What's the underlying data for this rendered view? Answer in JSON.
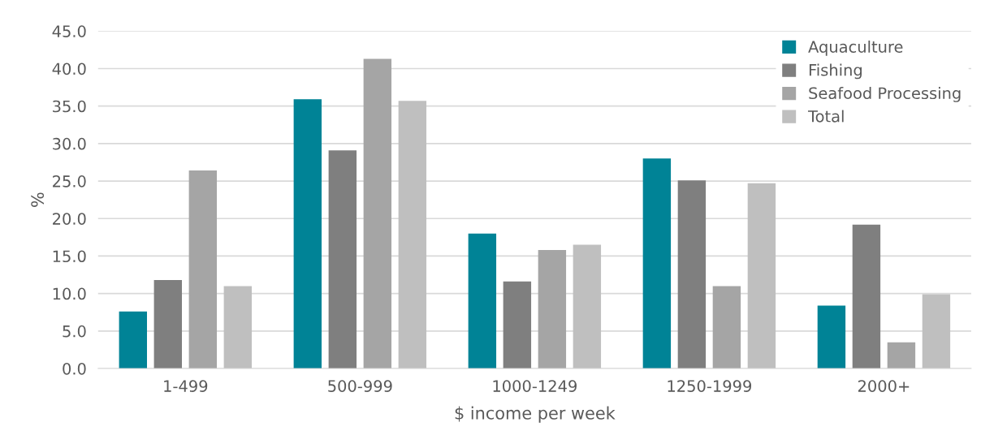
{
  "chart_data": {
    "type": "bar",
    "xlabel": "$ income per week",
    "ylabel": "%",
    "categories": [
      "1-499",
      "500-999",
      "1000-1249",
      "1250-1999",
      "2000+"
    ],
    "series": [
      {
        "name": "Aquaculture",
        "color": "#008396",
        "values": [
          7.6,
          35.9,
          18.0,
          28.0,
          8.4
        ]
      },
      {
        "name": "Fishing",
        "color": "#7f7f7f",
        "values": [
          11.8,
          29.1,
          11.6,
          25.1,
          19.2
        ]
      },
      {
        "name": "Seafood Processing",
        "color": "#a5a5a5",
        "values": [
          26.4,
          41.3,
          15.8,
          11.0,
          3.5
        ]
      },
      {
        "name": "Total",
        "color": "#bfbfbf",
        "values": [
          11.0,
          35.7,
          16.5,
          24.7,
          9.9
        ]
      }
    ],
    "ylim": [
      0,
      45
    ],
    "yticks": [
      {
        "value": 0,
        "label": "0.0"
      },
      {
        "value": 5,
        "label": "5.0"
      },
      {
        "value": 10,
        "label": "10.0"
      },
      {
        "value": 15,
        "label": "15.0"
      },
      {
        "value": 20,
        "label": "20.0"
      },
      {
        "value": 25,
        "label": "25.0"
      },
      {
        "value": 30,
        "label": "30.0"
      },
      {
        "value": 35,
        "label": "35.0"
      },
      {
        "value": 40,
        "label": "40.0"
      },
      {
        "value": 45,
        "label": "45.0"
      }
    ],
    "grid": "y",
    "legend": "top right"
  }
}
